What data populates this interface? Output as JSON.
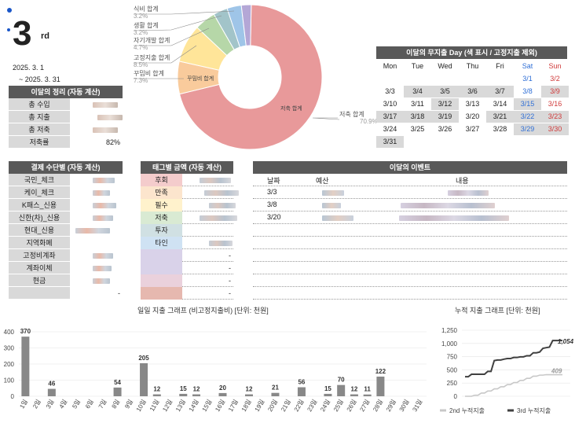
{
  "header": {
    "month": "3",
    "suffix": "rd",
    "start": "2025. 3. 1",
    "end": "~  2025. 3. 31"
  },
  "summary": {
    "title": "이달의 정리 (자동 계산)",
    "rows": [
      {
        "label": "총 수입",
        "value": ""
      },
      {
        "label": "총 지출",
        "value": ""
      },
      {
        "label": "총 저축",
        "value": ""
      },
      {
        "label": "저축률",
        "value": "82%"
      }
    ]
  },
  "pie": {
    "segments": [
      {
        "name": "저축 합계",
        "pct": "70.9%",
        "value": 70.9,
        "color": "#e8999a"
      },
      {
        "name": "꾸밈비 합계",
        "pct": "7.3%",
        "value": 7.3,
        "color": "#f9cb9c"
      },
      {
        "name": "고정지출 합계",
        "pct": "8.5%",
        "value": 8.5,
        "color": "#ffe599"
      },
      {
        "name": "자기개발 합계",
        "pct": "4.7%",
        "value": 4.7,
        "color": "#b6d7a8"
      },
      {
        "name": "생활 합계",
        "pct": "3.2%",
        "value": 3.2,
        "color": "#a2c4c9"
      },
      {
        "name": "식비 합계",
        "pct": "3.2%",
        "value": 3.2,
        "color": "#9fc5e8"
      },
      {
        "name": "",
        "pct": "",
        "value": 2.2,
        "color": "#b4a7d6"
      }
    ]
  },
  "calendar": {
    "title": "이달의 무지출 Day (색 표시 / 고정지출 제외)",
    "days": [
      "Mon",
      "Tue",
      "Wed",
      "Thu",
      "Fri",
      "Sat",
      "Sun"
    ],
    "weeks": [
      [
        "",
        "",
        "",
        "",
        "",
        "3/1",
        "3/2"
      ],
      [
        "3/3",
        "3/4",
        "3/5",
        "3/6",
        "3/7",
        "3/8",
        "3/9"
      ],
      [
        "3/10",
        "3/11",
        "3/12",
        "3/13",
        "3/14",
        "3/15",
        "3/16"
      ],
      [
        "3/17",
        "3/18",
        "3/19",
        "3/20",
        "3/21",
        "3/22",
        "3/23"
      ],
      [
        "3/24",
        "3/25",
        "3/26",
        "3/27",
        "3/28",
        "3/29",
        "3/30"
      ],
      [
        "3/31",
        "",
        "",
        "",
        "",
        "",
        ""
      ]
    ],
    "shaded": [
      [
        0,
        0,
        0,
        0,
        0,
        0,
        0
      ],
      [
        0,
        1,
        1,
        1,
        1,
        0,
        1
      ],
      [
        0,
        0,
        1,
        0,
        0,
        1,
        0
      ],
      [
        1,
        1,
        1,
        0,
        1,
        1,
        1
      ],
      [
        0,
        0,
        0,
        0,
        0,
        1,
        1
      ],
      [
        1,
        0,
        0,
        0,
        0,
        0,
        0
      ]
    ]
  },
  "payment": {
    "title": "결제 수단별 (자동 계산)",
    "rows": [
      "국민_체크",
      "케이_체크",
      "K패스_신용",
      "신한(차)_신용",
      "현대_신용",
      "지역화폐",
      "고정비계좌",
      "계좌이체",
      "현금",
      ""
    ],
    "last": "-"
  },
  "tags": {
    "title": "태그별 금액 (자동 계산)",
    "rows": [
      {
        "label": "후회",
        "color": "#f4cccc",
        "val": ""
      },
      {
        "label": "만족",
        "color": "#fce5cd",
        "val": ""
      },
      {
        "label": "필수",
        "color": "#fff2cc",
        "val": ""
      },
      {
        "label": "저축",
        "color": "#d9ead3",
        "val": ""
      },
      {
        "label": "투자",
        "color": "#d0e0e3",
        "val": ""
      },
      {
        "label": "타인",
        "color": "#cfe2f3",
        "val": ""
      },
      {
        "label": "",
        "color": "#d9d2e9",
        "val": "-"
      },
      {
        "label": "",
        "color": "#d9d2e9",
        "val": "-"
      },
      {
        "label": "",
        "color": "#ead1dc",
        "val": "-"
      },
      {
        "label": "",
        "color": "#e6b8af",
        "val": "-"
      }
    ]
  },
  "events": {
    "title": "이달의 이벤트",
    "cols": [
      "날짜",
      "예산",
      "내용"
    ],
    "rows": [
      {
        "date": "3/3"
      },
      {
        "date": "3/8"
      },
      {
        "date": "3/20"
      }
    ]
  },
  "chart_data": [
    {
      "type": "bar",
      "title": "일일 지출 그래프 (비고정지출비) [단위: 천원]",
      "categories": [
        "1일",
        "2일",
        "3일",
        "4일",
        "5일",
        "6일",
        "7일",
        "8일",
        "9일",
        "10일",
        "11일",
        "12일",
        "13일",
        "14일",
        "15일",
        "16일",
        "17일",
        "18일",
        "19일",
        "20일",
        "21일",
        "22일",
        "23일",
        "24일",
        "25일",
        "26일",
        "27일",
        "28일",
        "29일",
        "30일",
        "31일"
      ],
      "values": [
        370,
        0,
        46,
        0,
        0,
        0,
        0,
        54,
        0,
        205,
        12,
        0,
        15,
        12,
        0,
        20,
        0,
        12,
        0,
        21,
        0,
        56,
        0,
        15,
        70,
        12,
        11,
        122,
        0,
        0,
        0
      ],
      "labels": [
        "370",
        "",
        "46",
        "",
        "",
        "",
        "",
        "54",
        "",
        "205",
        "12",
        "",
        "15",
        "12",
        "",
        "20",
        "",
        "12",
        "",
        "21",
        "",
        "56",
        "",
        "15",
        "70",
        "12",
        "11",
        "122",
        "",
        "",
        ""
      ],
      "yticks": [
        "0",
        "100",
        "200",
        "300",
        "400"
      ],
      "ylim": [
        0,
        400
      ]
    },
    {
      "type": "line",
      "title": "누적 지출 그래프 [단위: 천원]",
      "yticks": [
        "0",
        "250",
        "500",
        "750",
        "1,000",
        "1,250"
      ],
      "ylim": [
        0,
        1250
      ],
      "series": [
        {
          "name": "2nd 누적지출",
          "color": "#c8c8c8",
          "end_label": "409",
          "values": [
            0,
            0,
            0,
            20,
            20,
            60,
            60,
            100,
            100,
            140,
            140,
            180,
            180,
            220,
            220,
            260,
            260,
            300,
            300,
            340,
            340,
            380,
            380,
            400,
            400,
            409,
            409,
            409,
            409,
            409,
            409
          ]
        },
        {
          "name": "3rd 누적지출",
          "color": "#404040",
          "end_label": "1,054",
          "values": [
            370,
            370,
            416,
            416,
            416,
            416,
            416,
            470,
            470,
            675,
            687,
            687,
            702,
            714,
            714,
            734,
            734,
            746,
            746,
            767,
            767,
            823,
            823,
            838,
            908,
            920,
            931,
            1054,
            1054,
            1054,
            1054
          ]
        }
      ]
    }
  ]
}
